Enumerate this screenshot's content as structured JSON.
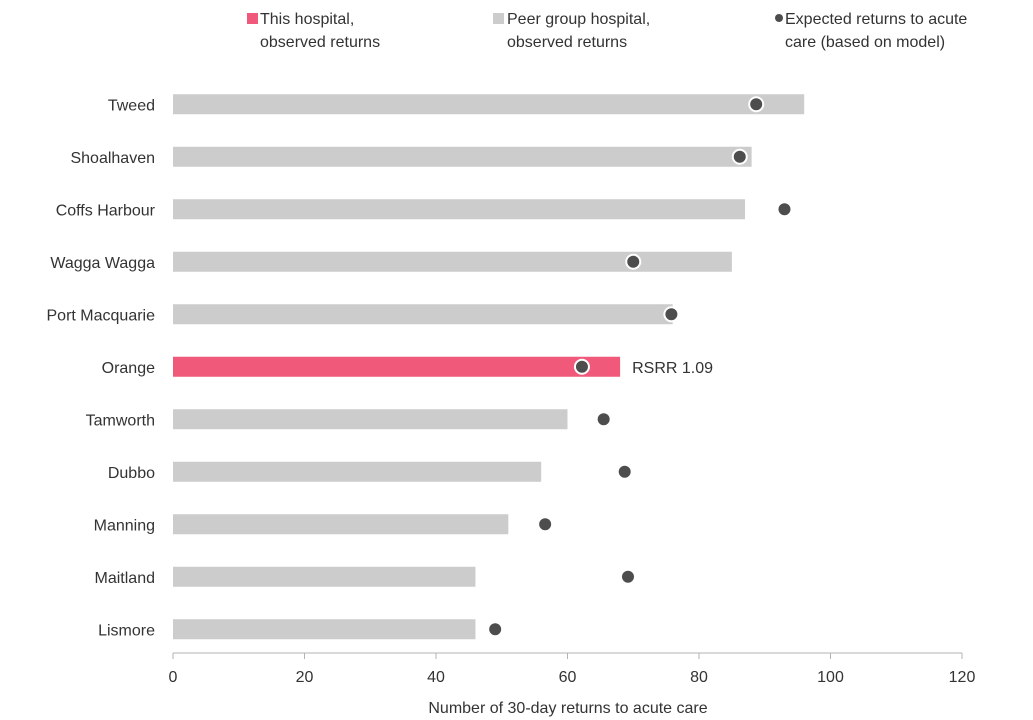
{
  "legend": {
    "this_hospital": [
      "This hospital,",
      "observed returns"
    ],
    "peer_group": [
      "Peer group hospital,",
      "observed returns"
    ],
    "expected": [
      "Expected returns to acute",
      "care (based on model)"
    ]
  },
  "chart_data": {
    "type": "bar",
    "orientation": "horizontal",
    "categories": [
      "Tweed",
      "Shoalhaven",
      "Coffs Harbour",
      "Wagga Wagga",
      "Port Macquarie",
      "Orange",
      "Tamworth",
      "Dubbo",
      "Manning",
      "Maitland",
      "Lismore"
    ],
    "series": [
      {
        "name": "This hospital, observed returns / Peer group hospital, observed returns",
        "values": [
          96,
          88,
          87,
          85,
          76,
          68,
          60,
          56,
          51,
          46,
          46
        ]
      },
      {
        "name": "Expected returns to acute care (based on model)",
        "values": [
          88.7,
          86.2,
          93,
          70,
          75.8,
          62.2,
          65.5,
          68.7,
          56.6,
          69.2,
          49
        ]
      }
    ],
    "highlight_category": "Orange",
    "highlight_annotation": "RSRR 1.09",
    "xlabel": "Number of 30-day returns to acute care",
    "xlim": [
      0,
      120
    ],
    "xticks": [
      "0",
      "20",
      "40",
      "60",
      "80",
      "100",
      "120"
    ],
    "colors": {
      "highlight": "#f0597a",
      "peer": "#cccccc",
      "expected": "#4d4d4d"
    },
    "legend_position": "top"
  }
}
